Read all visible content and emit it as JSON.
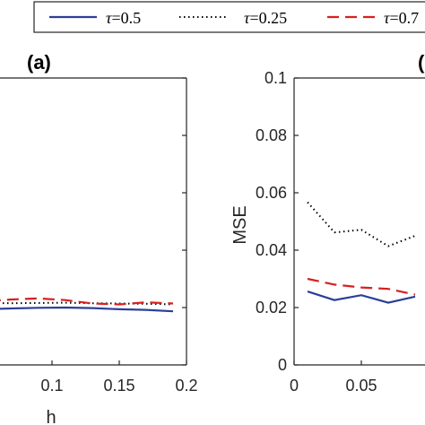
{
  "colors": {
    "t05": "#2b3f99",
    "t025": "#000000",
    "t075": "#d62020",
    "axis": "#262626"
  },
  "legend": {
    "items": [
      {
        "symbol": "τ",
        "text": "=0.5"
      },
      {
        "symbol": "τ",
        "text": "=0.25"
      },
      {
        "symbol": "τ",
        "text": "=0.7"
      }
    ]
  },
  "chart_data": [
    {
      "panel_label": "(a)",
      "type": "line",
      "xlabel": "h",
      "ylabel": "",
      "xticks": [
        "0.1",
        "0.15",
        "0.2"
      ],
      "xtick_values": [
        0.1,
        0.15,
        0.2
      ],
      "yticks": [],
      "xlim": [
        0.0,
        0.2
      ],
      "ylim": [
        0.0,
        0.1
      ],
      "grid": false,
      "series": [
        {
          "key": "t05",
          "style": "solid",
          "x": [
            0.0,
            0.01,
            0.03,
            0.05,
            0.07,
            0.09,
            0.11,
            0.13,
            0.15,
            0.17,
            0.19
          ],
          "y": [
            0.0197,
            0.0195,
            0.0193,
            0.0194,
            0.0197,
            0.0199,
            0.02,
            0.0198,
            0.0194,
            0.0192,
            0.0187
          ]
        },
        {
          "key": "t025",
          "style": "dotted",
          "x": [
            0.0,
            0.01,
            0.03,
            0.05,
            0.07,
            0.09,
            0.11,
            0.13,
            0.15,
            0.17,
            0.19
          ],
          "y": [
            0.0213,
            0.0214,
            0.0215,
            0.0216,
            0.0215,
            0.0216,
            0.0217,
            0.0215,
            0.0214,
            0.0213,
            0.0211
          ]
        },
        {
          "key": "t075",
          "style": "dashed",
          "x": [
            0.0,
            0.01,
            0.03,
            0.05,
            0.07,
            0.09,
            0.11,
            0.13,
            0.15,
            0.17,
            0.19
          ],
          "y": [
            0.0213,
            0.0214,
            0.0216,
            0.0222,
            0.0228,
            0.0232,
            0.0226,
            0.0214,
            0.0211,
            0.0218,
            0.0214
          ]
        }
      ]
    },
    {
      "panel_label": "(",
      "type": "line",
      "xlabel": "",
      "ylabel": "MSE",
      "xticks": [
        "0",
        "0.05"
      ],
      "xtick_values": [
        0,
        0.05
      ],
      "yticks": [
        "0",
        "0.02",
        "0.04",
        "0.06",
        "0.08",
        "0.1"
      ],
      "ytick_values": [
        0,
        0.02,
        0.04,
        0.06,
        0.08,
        0.1
      ],
      "xlim": [
        0.0,
        0.2
      ],
      "ylim": [
        0.0,
        0.1
      ],
      "grid": false,
      "series": [
        {
          "key": "t05",
          "style": "solid",
          "x": [
            0.01,
            0.03,
            0.05,
            0.07,
            0.09
          ],
          "y": [
            0.0256,
            0.0226,
            0.0243,
            0.0217,
            0.0238
          ]
        },
        {
          "key": "t025",
          "style": "dotted",
          "x": [
            0.01,
            0.03,
            0.05,
            0.07,
            0.09
          ],
          "y": [
            0.0567,
            0.0462,
            0.0471,
            0.0414,
            0.045
          ]
        },
        {
          "key": "t075",
          "style": "dashed",
          "x": [
            0.01,
            0.03,
            0.05,
            0.07,
            0.09
          ],
          "y": [
            0.03,
            0.028,
            0.027,
            0.0265,
            0.0245
          ]
        }
      ]
    }
  ]
}
